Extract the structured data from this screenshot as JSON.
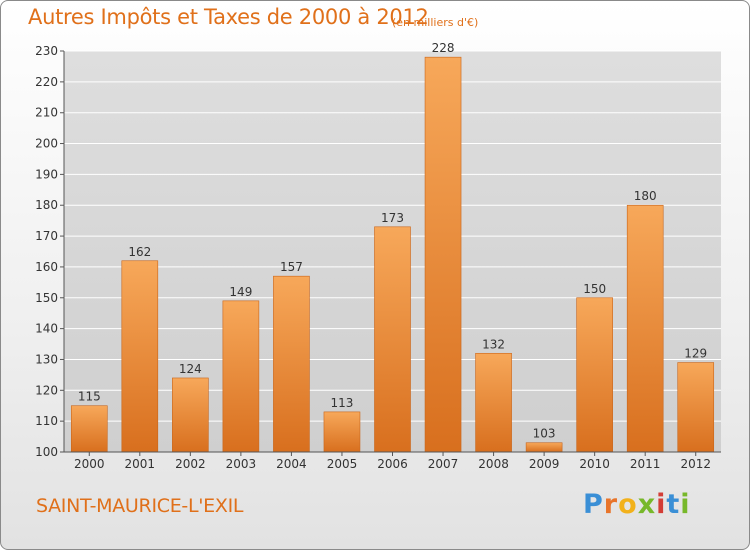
{
  "header": {
    "title": "Autres Impôts et Taxes de 2000 à 2012",
    "unit_note": "(en milliers d'€)"
  },
  "footer": {
    "commune": "SAINT-MAURICE-L'EXIL",
    "logo_letters": [
      "P",
      "r",
      "o",
      "x",
      "i",
      "t",
      "i"
    ],
    "logo_colors": [
      "#3a8fd6",
      "#e8742a",
      "#f2b11b",
      "#77b82a",
      "#d33d36",
      "#3a8fd6",
      "#77b82a"
    ]
  },
  "colors": {
    "bar_top": "#f7a85a",
    "bar_bottom": "#d86f1e",
    "accent": "#e0701a",
    "grid": "#ffffff"
  },
  "chart_data": {
    "type": "bar",
    "title": "Autres Impôts et Taxes de 2000 à 2012",
    "categories": [
      "2000",
      "2001",
      "2002",
      "2003",
      "2004",
      "2005",
      "2006",
      "2007",
      "2008",
      "2009",
      "2010",
      "2011",
      "2012"
    ],
    "values": [
      115,
      162,
      124,
      149,
      157,
      113,
      173,
      228,
      132,
      103,
      150,
      180,
      129
    ],
    "yticks": [
      100,
      110,
      120,
      130,
      140,
      150,
      160,
      170,
      180,
      190,
      200,
      210,
      220,
      230
    ],
    "ylim": [
      100,
      230
    ],
    "grid": true,
    "legend": "none"
  }
}
